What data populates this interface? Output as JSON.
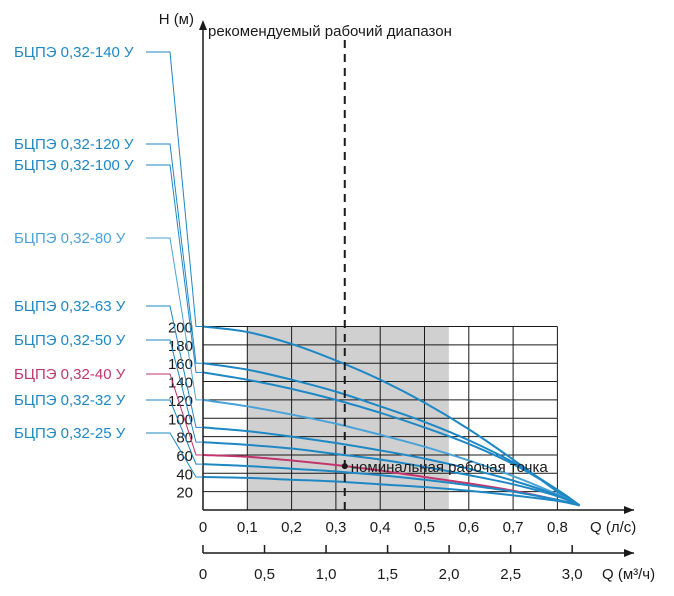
{
  "chart_data": {
    "type": "line",
    "ylabel": "H (м)",
    "xlabel": "Q (л/с)",
    "x2label": "Q (м³/ч)",
    "xlim": [
      0,
      0.9
    ],
    "ylim": [
      0,
      210
    ],
    "x_ticks": [
      "0",
      "0,1",
      "0,2",
      "0,3",
      "0,4",
      "0,5",
      "0,6",
      "0,7",
      "0,8"
    ],
    "y_ticks": [
      "20",
      "40",
      "60",
      "80",
      "100",
      "120",
      "140",
      "160",
      "180",
      "200"
    ],
    "x2_ticks": [
      {
        "label": "0",
        "value": 0
      },
      {
        "label": "0,5",
        "value": 0.5
      },
      {
        "label": "1,0",
        "value": 1.0
      },
      {
        "label": "1,5",
        "value": 1.5
      },
      {
        "label": "2,0",
        "value": 2.0
      },
      {
        "label": "2,5",
        "value": 2.5
      },
      {
        "label": "3,0",
        "value": 3.0
      }
    ],
    "grid": true,
    "working_range": {
      "label": "рекомендуемый рабочий диапазон",
      "x_from": 0.1,
      "x_to": 0.555,
      "color": "#d0d0d0"
    },
    "nominal_point": {
      "label": "номинальная рабочая точка",
      "x": 0.32
    },
    "series": [
      {
        "name": "БЦПЭ 0,32-140 У",
        "color": "#1e88c5",
        "x": [
          0,
          0.1,
          0.2,
          0.3,
          0.4,
          0.5,
          0.6,
          0.7,
          0.8,
          0.85
        ],
        "y": [
          200,
          194,
          181,
          163,
          142,
          117,
          88,
          55,
          20,
          5
        ]
      },
      {
        "name": "БЦПЭ 0,32-120 У",
        "color": "#1e88c5",
        "x": [
          0,
          0.1,
          0.2,
          0.3,
          0.4,
          0.5,
          0.6,
          0.7,
          0.8,
          0.85
        ],
        "y": [
          160,
          153,
          142,
          129,
          113,
          96,
          76,
          52,
          22,
          5
        ]
      },
      {
        "name": "БЦПЭ 0,32-100 У",
        "color": "#1e88c5",
        "x": [
          0,
          0.1,
          0.2,
          0.3,
          0.4,
          0.5,
          0.6,
          0.7,
          0.8,
          0.85
        ],
        "y": [
          150,
          142,
          132,
          120,
          106,
          90,
          72,
          50,
          22,
          5
        ]
      },
      {
        "name": "БЦПЭ 0,32-80 У",
        "color": "#4aa3d8",
        "x": [
          0,
          0.1,
          0.2,
          0.3,
          0.4,
          0.5,
          0.6,
          0.7,
          0.8,
          0.85
        ],
        "y": [
          120,
          113,
          104,
          94,
          82,
          69,
          54,
          37,
          17,
          5
        ]
      },
      {
        "name": "БЦПЭ 0,32-63 У",
        "color": "#1e88c5",
        "x": [
          0,
          0.1,
          0.2,
          0.3,
          0.4,
          0.5,
          0.6,
          0.7,
          0.8,
          0.85
        ],
        "y": [
          90,
          86,
          80,
          73,
          65,
          56,
          45,
          32,
          16,
          5
        ]
      },
      {
        "name": "БЦПЭ 0,32-50 У",
        "color": "#1e88c5",
        "x": [
          0,
          0.1,
          0.2,
          0.3,
          0.4,
          0.5,
          0.6,
          0.7,
          0.8,
          0.85
        ],
        "y": [
          74,
          71,
          67,
          61,
          55,
          47,
          38,
          28,
          15,
          5
        ]
      },
      {
        "name": "БЦПЭ 0,32-40 У",
        "color": "#c2366f",
        "x": [
          0,
          0.1,
          0.2,
          0.3,
          0.4,
          0.5,
          0.6,
          0.7,
          0.8,
          0.85
        ],
        "y": [
          60,
          58,
          54,
          49,
          43,
          36,
          29,
          21,
          11,
          5
        ]
      },
      {
        "name": "БЦПЭ 0,32-32 У",
        "color": "#1e88c5",
        "x": [
          0,
          0.1,
          0.2,
          0.3,
          0.4,
          0.5,
          0.6,
          0.7,
          0.8,
          0.85
        ],
        "y": [
          50,
          48,
          45,
          42,
          38,
          33,
          27,
          20,
          11,
          5
        ]
      },
      {
        "name": "БЦПЭ 0,32-25 У",
        "color": "#1e88c5",
        "x": [
          0,
          0.1,
          0.2,
          0.3,
          0.4,
          0.5,
          0.6,
          0.7,
          0.8,
          0.85
        ],
        "y": [
          36,
          35,
          33,
          31,
          28,
          25,
          21,
          16,
          10,
          5
        ]
      }
    ]
  }
}
